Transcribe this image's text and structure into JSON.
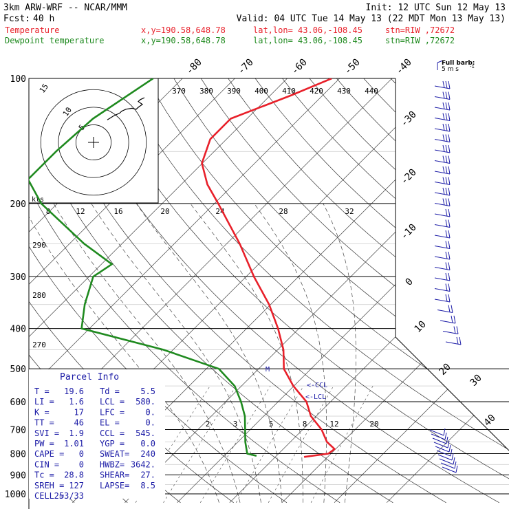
{
  "header": {
    "model": "3km ARW-WRF -- NCAR/MMM",
    "fcst_label": "Fcst:",
    "fcst_value": "40 h",
    "init": "Init: 12 UTC Sun 12 May 13",
    "valid": "Valid: 04 UTC Tue 14 May 13 (22 MDT Mon 13 May 13)"
  },
  "legend": [
    {
      "name": "Temperature",
      "color": "#e8202a",
      "xy": "x,y=190.58,648.78",
      "latlon": "lat,lon= 43.06,-108.45",
      "stn": "stn=RIW ,72672"
    },
    {
      "name": "Dewpoint temperature",
      "color": "#1f8a1f",
      "xy": "x,y=190.58,648.78",
      "latlon": "lat,lon= 43.06,-108.45",
      "stn": "stn=RIW ,72672"
    }
  ],
  "barb_key": {
    "line1": "Full barb:",
    "line2": "5 m s",
    "exp": "-1"
  },
  "hodograph": {
    "units": "kts",
    "ring_labels": [
      "5",
      "10",
      "15"
    ],
    "points": [
      [
        0,
        2
      ],
      [
        3,
        6
      ],
      [
        6,
        9
      ],
      [
        7,
        11
      ],
      [
        9,
        13
      ],
      [
        12,
        14
      ],
      [
        14,
        13
      ],
      [
        15,
        15
      ],
      [
        17,
        18
      ],
      [
        15,
        21
      ],
      [
        16,
        23
      ],
      [
        18,
        25
      ]
    ]
  },
  "parcel": {
    "title": "Parcel Info",
    "rows": [
      [
        "T =",
        "19.6",
        "Td =",
        "5.5"
      ],
      [
        "LI =",
        "1.6",
        "LCL =",
        "580."
      ],
      [
        "K =",
        "17",
        "LFC =",
        "0."
      ],
      [
        "TT =",
        "46",
        "EL =",
        "0."
      ],
      [
        "SVI =",
        "1.9",
        "CCL =",
        "545."
      ],
      [
        "PW =",
        "1.01",
        "YGP =",
        "0.0"
      ],
      [
        "CAPE =",
        "0",
        "SWEAT=",
        "240"
      ],
      [
        "CIN =",
        "0",
        "HWBZ=",
        "3642."
      ],
      [
        "Tc =",
        "28.8",
        "SHEAR=",
        "27."
      ],
      [
        "SREH =",
        "127",
        "LAPSE=",
        "8.5"
      ],
      [
        "CELL =",
        "253/33",
        "",
        ""
      ]
    ]
  },
  "annotations": {
    "ccl": "<-CCL",
    "lcl": "<-LCL",
    "m": "M"
  },
  "chart_data": {
    "type": "line",
    "title": "",
    "xlabel": "",
    "ylabel": "",
    "pressure_levels": [
      100,
      200,
      300,
      400,
      500,
      600,
      700,
      800,
      900,
      1000
    ],
    "pressure_range": [
      1000,
      100
    ],
    "temperature_range_at_surface": [
      -30,
      40
    ],
    "isotherm_labels": [
      "-80",
      "-70",
      "-60",
      "-50",
      "-40",
      "-30",
      "-20",
      "-10",
      "0",
      "10",
      "20",
      "30",
      "40"
    ],
    "theta_labels": [
      "370",
      "380",
      "390",
      "400",
      "410",
      "420",
      "430",
      "440"
    ],
    "theta_labels_left": [
      "290",
      "280",
      "270"
    ],
    "theta_e_labels": [
      "8",
      "12",
      "16",
      "20",
      "24",
      "28",
      "32"
    ],
    "mixing_ratio_labels": [
      "2",
      "3",
      "5",
      "8",
      "12",
      "20"
    ],
    "series": [
      {
        "name": "Temperature",
        "color": "#e8202a",
        "points": [
          {
            "p": 100,
            "t": -51.5
          },
          {
            "p": 110,
            "t": -56.1
          },
          {
            "p": 125,
            "t": -63.1
          },
          {
            "p": 140,
            "t": -63.1
          },
          {
            "p": 160,
            "t": -60.1
          },
          {
            "p": 180,
            "t": -55.0
          },
          {
            "p": 200,
            "t": -49.3
          },
          {
            "p": 250,
            "t": -37.5
          },
          {
            "p": 300,
            "t": -28.5
          },
          {
            "p": 350,
            "t": -20.3
          },
          {
            "p": 400,
            "t": -14.0
          },
          {
            "p": 450,
            "t": -8.9
          },
          {
            "p": 500,
            "t": -5.2
          },
          {
            "p": 550,
            "t": -0.1
          },
          {
            "p": 600,
            "t": 5.4
          },
          {
            "p": 650,
            "t": 9.0
          },
          {
            "p": 700,
            "t": 13.6
          },
          {
            "p": 750,
            "t": 17.0
          },
          {
            "p": 780,
            "t": 19.8
          },
          {
            "p": 800,
            "t": 19.5
          },
          {
            "p": 815,
            "t": 15.5
          }
        ]
      },
      {
        "name": "Dewpoint temperature",
        "color": "#1f8a1f",
        "points": [
          {
            "p": 100,
            "t": -85.6
          },
          {
            "p": 125,
            "t": -89.4
          },
          {
            "p": 150,
            "t": -90.2
          },
          {
            "p": 175,
            "t": -90.2
          },
          {
            "p": 200,
            "t": -83.1
          },
          {
            "p": 250,
            "t": -67.2
          },
          {
            "p": 280,
            "t": -58.0
          },
          {
            "p": 300,
            "t": -59.2
          },
          {
            "p": 350,
            "t": -55.5
          },
          {
            "p": 400,
            "t": -51.5
          },
          {
            "p": 450,
            "t": -31.8
          },
          {
            "p": 500,
            "t": -17.6
          },
          {
            "p": 550,
            "t": -11.3
          },
          {
            "p": 600,
            "t": -7.1
          },
          {
            "p": 650,
            "t": -3.6
          },
          {
            "p": 700,
            "t": -1.0
          },
          {
            "p": 750,
            "t": 1.4
          },
          {
            "p": 800,
            "t": 4.0
          },
          {
            "p": 810,
            "t": 6.2
          }
        ]
      }
    ]
  }
}
